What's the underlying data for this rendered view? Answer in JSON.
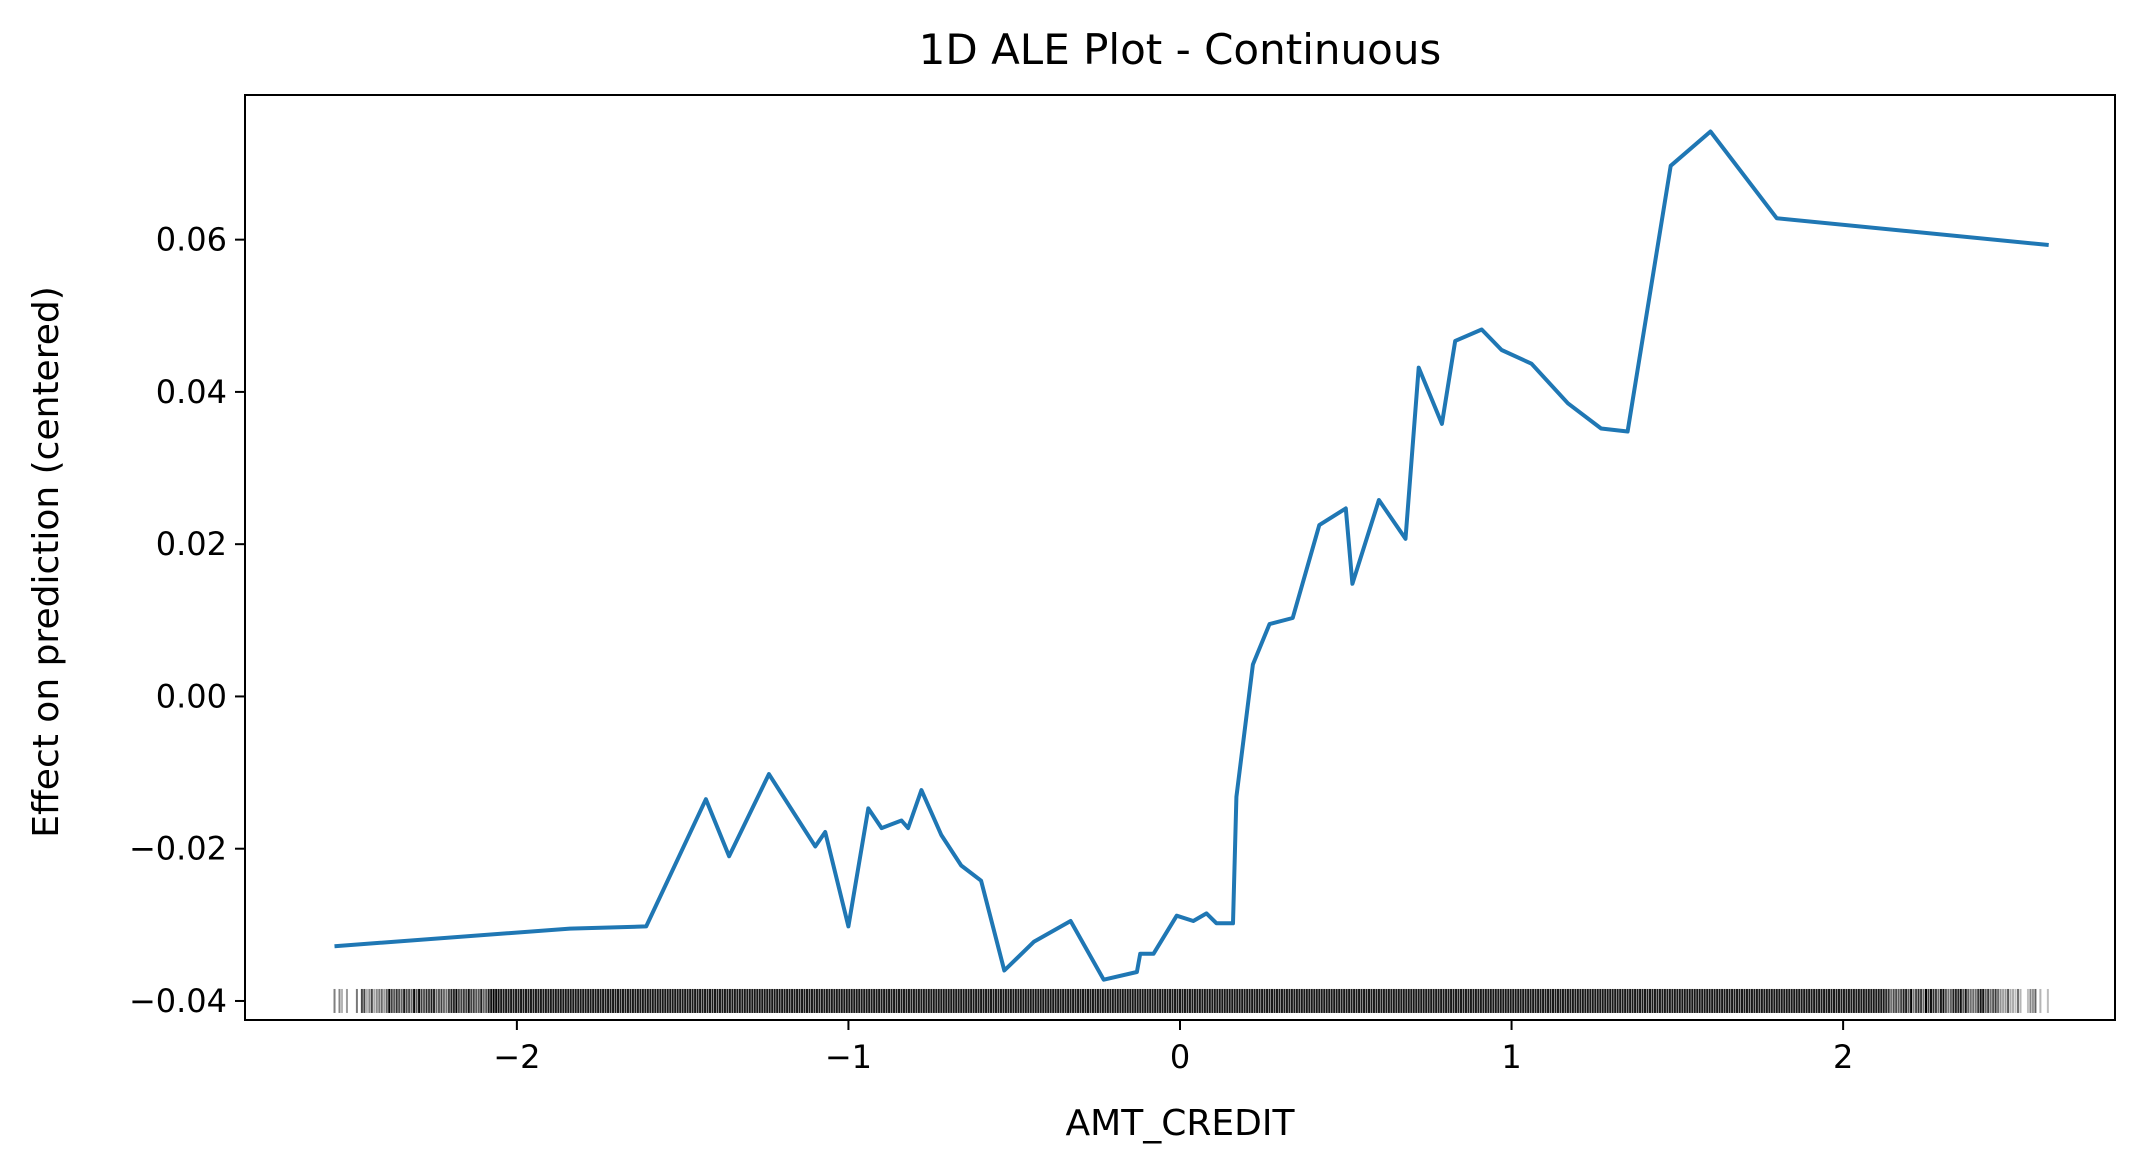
{
  "chart_data": {
    "type": "line",
    "title": "1D ALE Plot - Continuous",
    "xlabel": "AMT_CREDIT",
    "ylabel": "Effect on prediction (centered)",
    "xlim": [
      -2.82,
      2.82
    ],
    "ylim": [
      -0.0425,
      0.079
    ],
    "xticks": [
      -2,
      -1,
      0,
      1,
      2
    ],
    "xtick_labels": [
      "−2",
      "−1",
      "0",
      "1",
      "2"
    ],
    "yticks": [
      -0.04,
      -0.02,
      0.0,
      0.02,
      0.04,
      0.06
    ],
    "ytick_labels": [
      "−0.04",
      "−0.02",
      "0.00",
      "0.02",
      "0.04",
      "0.06"
    ],
    "grid": false,
    "legend": "none",
    "line_color": "#1f77b4",
    "rug_color": "#000000",
    "series": [
      {
        "x": [
          -2.55,
          -1.84,
          -1.61,
          -1.43,
          -1.36,
          -1.24,
          -1.1,
          -1.07,
          -1.0,
          -0.94,
          -0.9,
          -0.84,
          -0.82,
          -0.78,
          -0.72,
          -0.66,
          -0.6,
          -0.53,
          -0.44,
          -0.33,
          -0.23,
          -0.13,
          -0.12,
          -0.08,
          -0.01,
          0.04,
          0.08,
          0.11,
          0.16,
          0.17,
          0.22,
          0.27,
          0.34,
          0.42,
          0.5,
          0.52,
          0.6,
          0.68,
          0.72,
          0.79,
          0.83,
          0.91,
          0.97,
          1.06,
          1.17,
          1.27,
          1.35,
          1.48,
          1.6,
          1.8,
          2.62
        ],
        "y": [
          -0.0328,
          -0.0305,
          -0.0302,
          -0.0135,
          -0.021,
          -0.0102,
          -0.0197,
          -0.0178,
          -0.0302,
          -0.0147,
          -0.0173,
          -0.0163,
          -0.0173,
          -0.0123,
          -0.0182,
          -0.0222,
          -0.0242,
          -0.036,
          -0.0322,
          -0.0295,
          -0.0372,
          -0.0362,
          -0.0338,
          -0.0338,
          -0.0288,
          -0.0295,
          -0.0285,
          -0.0298,
          -0.0298,
          -0.0132,
          0.0042,
          0.0095,
          0.0103,
          0.0225,
          0.0247,
          0.0148,
          0.0258,
          0.0207,
          0.0432,
          0.0358,
          0.0467,
          0.0482,
          0.0455,
          0.0437,
          0.0385,
          0.0352,
          0.0348,
          0.0697,
          0.0742,
          0.0628,
          0.0593
        ]
      }
    ]
  }
}
